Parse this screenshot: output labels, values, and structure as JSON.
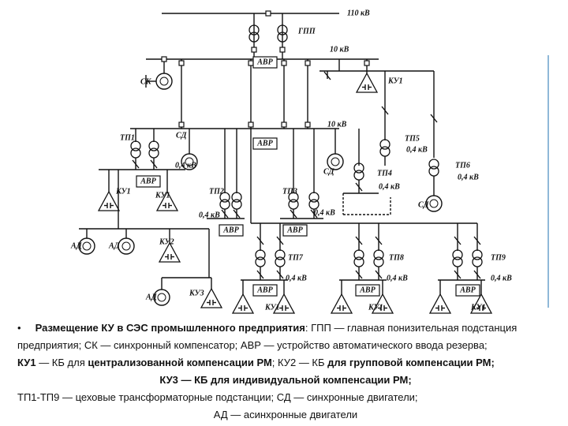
{
  "diagram": {
    "labels": [
      "110 кВ",
      "ГПП",
      "10 кВ",
      "АВР",
      "СК",
      "КУ1",
      "10 кВ",
      "АВР",
      "ТП1",
      "СД",
      "0,4 кВ",
      "АВР",
      "КУ1",
      "КУ1",
      "ТП5",
      "0,4 кВ",
      "СД",
      "ТП4",
      "0,4 кВ",
      "ТП6",
      "0,4 кВ",
      "ТП2",
      "ТП3",
      "0,4 кВ",
      "0,4 кВ",
      "АВР",
      "АВР",
      "СД",
      "АД",
      "АД",
      "КУ2",
      "АД",
      "КУ3",
      "ТП7",
      "ТП8",
      "ТП9",
      "0,4 кВ",
      "0,4 кВ",
      "0,4 кВ",
      "АВР",
      "АВР",
      "АВР",
      "КУ1",
      "КУ1",
      "КУ1"
    ]
  },
  "caption": {
    "lines": [
      [
        "Размещение КУ в СЭС промышленного предприятия",
        ": ГПП — главная понизительная подстанция"
      ],
      [
        "предприятия; СК — синхронный компенсатор; АВР — устройство автоматического ввода резерва;"
      ],
      [
        "КУ1",
        " — КБ для ",
        "централизованной компенсации РМ",
        "; КУ2 — КБ ",
        "для групповой компенсации РМ;"
      ],
      [
        "КУ3 — КБ для индивидуальной компенсации РМ;"
      ],
      [
        "ТП1-ТП9 — цеховые трансформаторные подстанции; СД — синхронные двигатели;"
      ],
      [
        "АД — асинхронные двигатели"
      ]
    ]
  }
}
